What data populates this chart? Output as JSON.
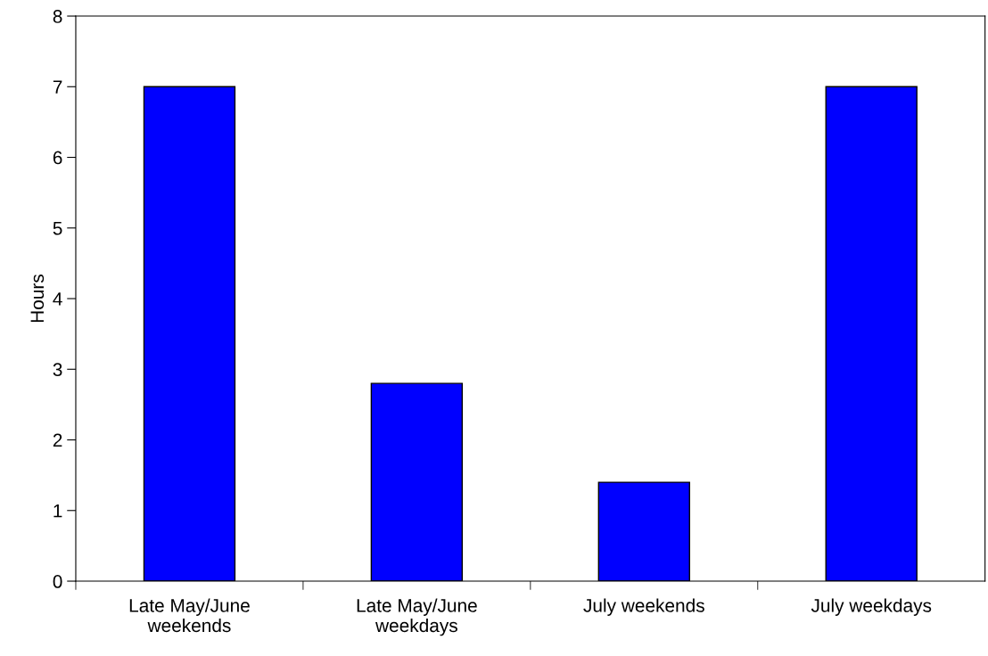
{
  "chart_data": {
    "type": "bar",
    "ylabel": "Hours",
    "categories": [
      "Late May/June\nweekends",
      "Late May/June\nweekdays",
      "July weekends",
      "July weekdays"
    ],
    "values": [
      7,
      2.8,
      1.4,
      7
    ],
    "color": "#0000ff",
    "ylim": [
      0,
      8
    ],
    "yticks": [
      0,
      1,
      2,
      3,
      4,
      5,
      6,
      7,
      8
    ],
    "grid": false,
    "legend": false
  }
}
